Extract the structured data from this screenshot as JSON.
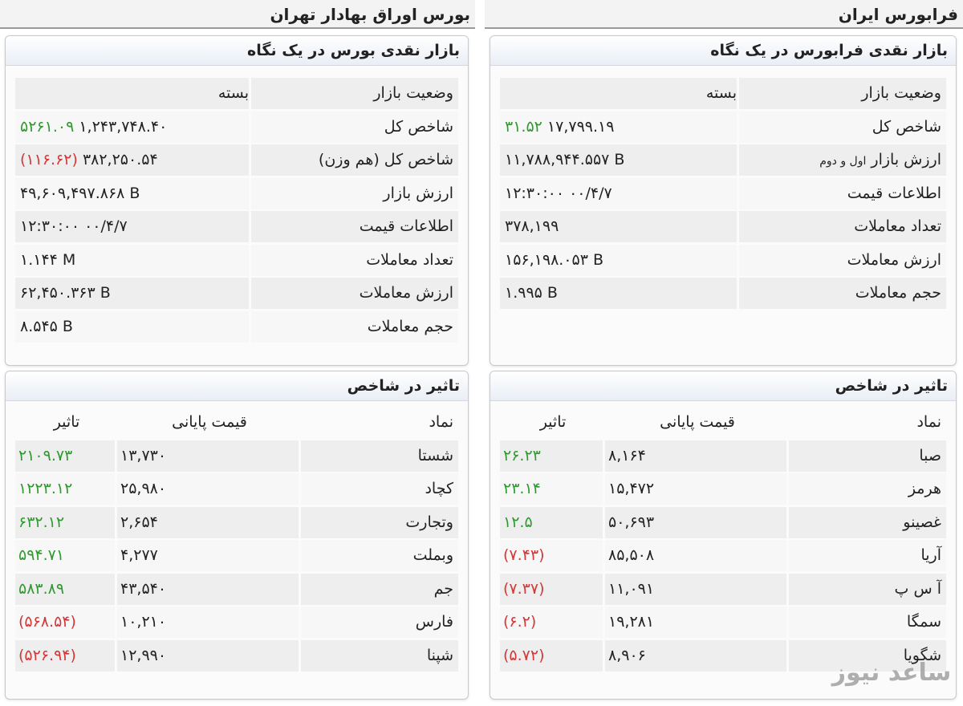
{
  "tehran": {
    "title": "بورس اوراق بهادار تهران",
    "glance_title": "بازار نقدی بورس در یک نگاه",
    "rows": [
      {
        "label": "وضعیت بازار",
        "value": "بسته"
      },
      {
        "label": "شاخص کل",
        "value": "۱,۲۴۳,۷۴۸.۴۰",
        "change": "۵۲۶۱.۰۹"
      },
      {
        "label": "شاخص کل (هم وزن)",
        "value": "۳۸۲,۲۵۰.۵۴",
        "change": "(۱۱۶.۶۲)"
      },
      {
        "label": "ارزش بازار",
        "value": "۴۹,۶۰۹,۴۹۷.۸۶۸ B"
      },
      {
        "label": "اطلاعات قیمت",
        "value": "۱۲:۳۰:۰۰ ۰۰/۴/۷"
      },
      {
        "label": "تعداد معاملات",
        "value": "۱.۱۴۴ M"
      },
      {
        "label": "ارزش معاملات",
        "value": "۶۲,۴۵۰.۳۶۳ B"
      },
      {
        "label": "حجم معاملات",
        "value": "۸.۵۴۵ B"
      }
    ],
    "impact_title": "تاثیر در شاخص",
    "impact_headers": {
      "symbol": "نماد",
      "price": "قیمت پایانی",
      "impact": "تاثیر"
    },
    "impact_rows": [
      {
        "symbol": "شستا",
        "price": "۱۳,۷۳۰",
        "impact": "۲۱۰۹.۷۳",
        "sign": "pos"
      },
      {
        "symbol": "کچاد",
        "price": "۲۵,۹۸۰",
        "impact": "۱۲۲۳.۱۲",
        "sign": "pos"
      },
      {
        "symbol": "وتجارت",
        "price": "۲,۶۵۴",
        "impact": "۶۳۲.۱۲",
        "sign": "pos"
      },
      {
        "symbol": "وبملت",
        "price": "۴,۲۷۷",
        "impact": "۵۹۴.۷۱",
        "sign": "pos"
      },
      {
        "symbol": "جم",
        "price": "۴۳,۵۴۰",
        "impact": "۵۸۳.۸۹",
        "sign": "pos"
      },
      {
        "symbol": "فارس",
        "price": "۱۰,۲۱۰",
        "impact": "(۵۶۸.۵۴)",
        "sign": "neg"
      },
      {
        "symbol": "شپنا",
        "price": "۱۲,۹۹۰",
        "impact": "(۵۲۶.۹۴)",
        "sign": "neg"
      }
    ]
  },
  "farabourse": {
    "title": "فرابورس ایران",
    "glance_title": "بازار نقدی فرابورس در یک نگاه",
    "rows": [
      {
        "label": "وضعیت بازار",
        "value": "بسته"
      },
      {
        "label": "شاخص کل",
        "value": "۱۷,۷۹۹.۱۹",
        "change": "۳۱.۵۲"
      },
      {
        "label": "ارزش بازار",
        "label_suffix": "اول و دوم",
        "value": "۱۱,۷۸۸,۹۴۴.۵۵۷ B"
      },
      {
        "label": "اطلاعات قیمت",
        "value": "۱۲:۳۰:۰۰ ۰۰/۴/۷"
      },
      {
        "label": "تعداد معاملات",
        "value": "۳۷۸,۱۹۹"
      },
      {
        "label": "ارزش معاملات",
        "value": "۱۵۶,۱۹۸.۰۵۳ B"
      },
      {
        "label": "حجم معاملات",
        "value": "۱.۹۹۵ B"
      }
    ],
    "impact_title": "تاثیر در شاخص",
    "impact_headers": {
      "symbol": "نماد",
      "price": "قیمت پایانی",
      "impact": "تاثیر"
    },
    "impact_rows": [
      {
        "symbol": "صبا",
        "price": "۸,۱۶۴",
        "impact": "۲۶.۲۳",
        "sign": "pos"
      },
      {
        "symbol": "هرمز",
        "price": "۱۵,۴۷۲",
        "impact": "۲۳.۱۴",
        "sign": "pos"
      },
      {
        "symbol": "غصینو",
        "price": "۵۰,۶۹۳",
        "impact": "۱۲.۵",
        "sign": "pos"
      },
      {
        "symbol": "آریا",
        "price": "۸۵,۵۰۸",
        "impact": "(۷.۴۳)",
        "sign": "neg"
      },
      {
        "symbol": "آ س پ",
        "price": "۱۱,۰۹۱",
        "impact": "(۷.۳۷)",
        "sign": "neg"
      },
      {
        "symbol": "سمگا",
        "price": "۱۹,۲۸۱",
        "impact": "(۶.۲)",
        "sign": "neg"
      },
      {
        "symbol": "شگویا",
        "price": "۸,۹۰۶",
        "impact": "(۵.۷۲)",
        "sign": "neg"
      }
    ]
  },
  "watermark": "ساعد نیوز",
  "colors": {
    "positive": "#2e9a2e",
    "negative": "#d23838"
  }
}
